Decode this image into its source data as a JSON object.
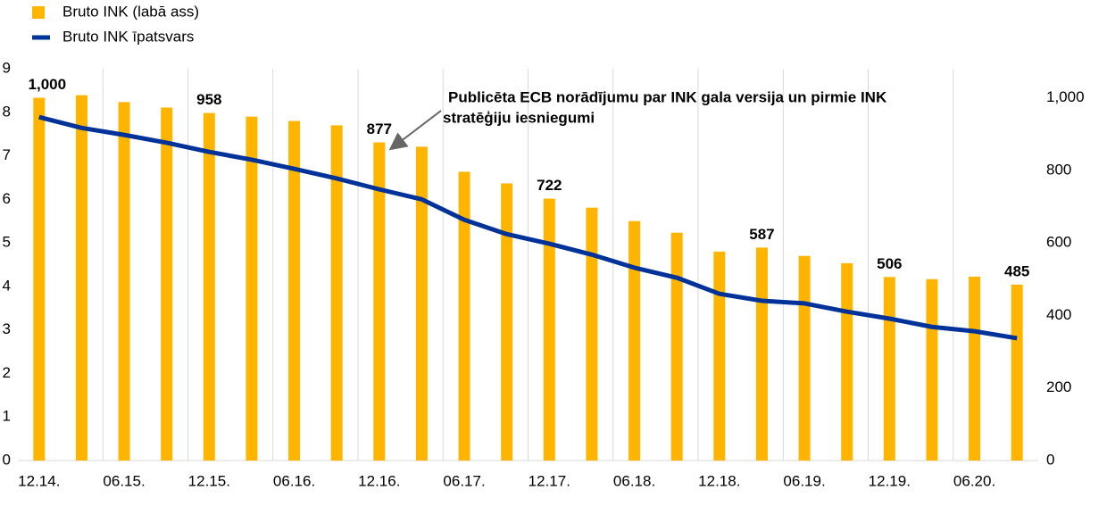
{
  "chart_data": {
    "type": "bar-line",
    "categories": [
      "12.14.",
      null,
      "06.15.",
      null,
      "12.15.",
      null,
      "06.16.",
      null,
      "12.16.",
      null,
      "06.17.",
      null,
      "12.17.",
      null,
      "06.18.",
      null,
      "12.18.",
      null,
      "06.19.",
      null,
      "12.19.",
      null,
      "06.20.",
      null
    ],
    "series": [
      {
        "name": "Bruto INK (labā ass)",
        "type": "bar",
        "axis": "y2",
        "color": "#ffb400",
        "values": [
          1000,
          1007,
          988,
          973,
          958,
          948,
          936,
          924,
          877,
          865,
          796,
          764,
          722,
          697,
          660,
          628,
          576,
          587,
          564,
          544,
          506,
          500,
          507,
          485
        ],
        "value_labels": [
          "1,000",
          null,
          null,
          null,
          "958",
          null,
          null,
          null,
          "877",
          null,
          null,
          null,
          "722",
          null,
          null,
          null,
          null,
          "587",
          null,
          null,
          "506",
          null,
          null,
          "485"
        ]
      },
      {
        "name": "Bruto INK īpatsvars",
        "type": "line",
        "color": "#003299",
        "values": [
          7.89,
          7.64,
          7.48,
          7.3,
          7.09,
          6.91,
          6.7,
          6.48,
          6.23,
          6.0,
          5.53,
          5.2,
          4.98,
          4.73,
          4.43,
          4.2,
          3.83,
          3.67,
          3.61,
          3.42,
          3.26,
          3.07,
          2.97,
          2.81
        ]
      }
    ],
    "ylim": [
      0,
      9
    ],
    "yticks": [
      0,
      1,
      2,
      3,
      4,
      5,
      6,
      7,
      8,
      9
    ],
    "y2lim": [
      0,
      1080
    ],
    "y2ticks": [
      0,
      200,
      400,
      600,
      800,
      {
        "value": 1000,
        "label": "1,000"
      }
    ],
    "grid": true,
    "annotation": {
      "lines": [
        "Publicēta ECB norādījumu par INK gala versija un pirmie INK",
        "stratēģiju iesniegumi"
      ],
      "category": 8
    }
  }
}
